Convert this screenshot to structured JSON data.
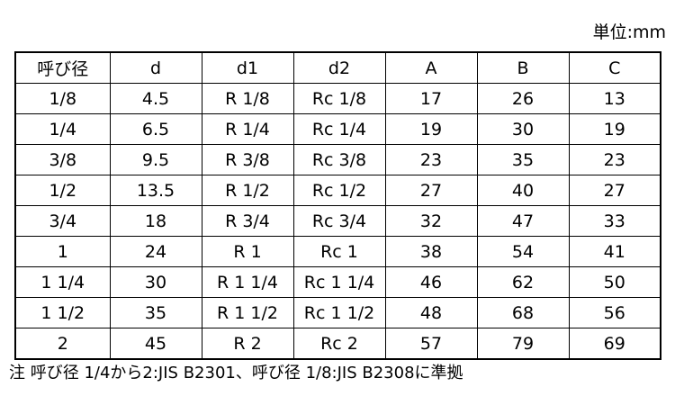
{
  "unit_label": "単位:mm",
  "table": {
    "headers": [
      "呼び径",
      "d",
      "d1",
      "d2",
      "A",
      "B",
      "C"
    ],
    "rows": [
      [
        "1/8",
        "4.5",
        "R 1/8",
        "Rc 1/8",
        "17",
        "26",
        "13"
      ],
      [
        "1/4",
        "6.5",
        "R 1/4",
        "Rc 1/4",
        "19",
        "30",
        "19"
      ],
      [
        "3/8",
        "9.5",
        "R 3/8",
        "Rc 3/8",
        "23",
        "35",
        "23"
      ],
      [
        "1/2",
        "13.5",
        "R 1/2",
        "Rc 1/2",
        "27",
        "40",
        "27"
      ],
      [
        "3/4",
        "18",
        "R 3/4",
        "Rc 3/4",
        "32",
        "47",
        "33"
      ],
      [
        "1",
        "24",
        "R 1",
        "Rc 1",
        "38",
        "54",
        "41"
      ],
      [
        "1 1/4",
        "30",
        "R 1 1/4",
        "Rc 1 1/4",
        "46",
        "62",
        "50"
      ],
      [
        "1 1/2",
        "35",
        "R 1 1/2",
        "Rc 1 1/2",
        "48",
        "68",
        "56"
      ],
      [
        "2",
        "45",
        "R 2",
        "Rc 2",
        "57",
        "79",
        "69"
      ]
    ]
  },
  "footnote": "注 呼び径 1/4から2:JIS B2301、呼び径 1/8:JIS B2308に準拠",
  "colors": {
    "text": "#000000",
    "border": "#000000",
    "background": "#ffffff"
  }
}
